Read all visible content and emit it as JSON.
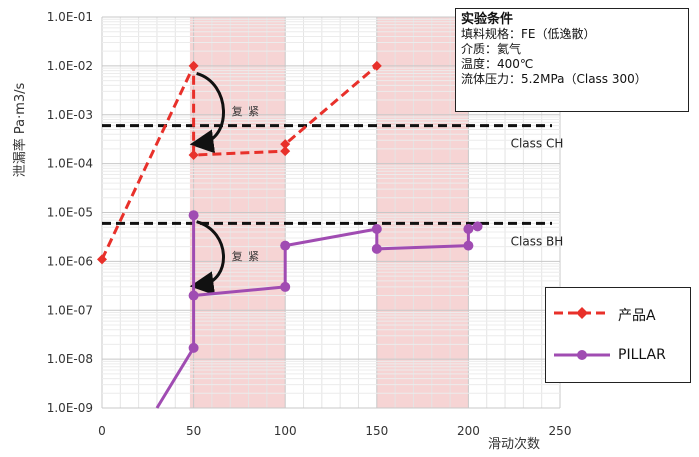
{
  "chart_data": {
    "type": "line",
    "xlabel": "滑动次数",
    "ylabel": "泄漏率  Pa·m3/s",
    "xlim": [
      0,
      250
    ],
    "xticks": [
      0,
      50,
      100,
      150,
      200,
      250
    ],
    "ylim_log10": [
      -9,
      -1
    ],
    "y_scale": "log",
    "yticks": [
      "1.0E-09",
      "1.0E-08",
      "1.0E-07",
      "1.0E-06",
      "1.0E-05",
      "1.0E-04",
      "1.0E-03",
      "1.0E-02",
      "1.0E-01"
    ],
    "grid": true,
    "shaded_x_ranges": [
      [
        48,
        100
      ],
      [
        150,
        200
      ]
    ],
    "reference_lines": [
      {
        "label": "Class CH",
        "y": 0.0006
      },
      {
        "label": "Class BH",
        "y": 6e-06
      }
    ],
    "annotations": [
      {
        "text": "复 紧",
        "near_x": 50,
        "series": "产品A"
      },
      {
        "text": "复 紧",
        "near_x": 50,
        "series": "PILLAR"
      }
    ],
    "series": [
      {
        "name": "产品A",
        "color": "#e8302a",
        "style": "dashed",
        "marker": "diamond",
        "points": [
          [
            0,
            1.1e-06
          ],
          [
            50,
            0.01
          ],
          [
            50,
            0.00015
          ],
          [
            100,
            0.00018
          ],
          [
            100,
            0.00025
          ],
          [
            150,
            0.01
          ]
        ]
      },
      {
        "name": "PILLAR",
        "color": "#a04cb2",
        "style": "solid",
        "marker": "circle",
        "points": [
          [
            30,
            1e-09
          ],
          [
            50,
            1.7e-08
          ],
          [
            50,
            8.8e-06
          ],
          [
            50,
            2e-07
          ],
          [
            100,
            3e-07
          ],
          [
            100,
            2.1e-06
          ],
          [
            150,
            4.6e-06
          ],
          [
            150,
            1.8e-06
          ],
          [
            200,
            2.1e-06
          ],
          [
            200,
            4.6e-06
          ],
          [
            205,
            5.2e-06
          ]
        ]
      }
    ]
  },
  "conditions": {
    "title": "实验条件",
    "lines": [
      "填料规格：FE（低逸散）",
      "介质：氦气",
      "温度：400℃",
      "流体压力：5.2MPa（Class 300）"
    ]
  },
  "legend": [
    {
      "label": "产品A",
      "color": "#e8302a"
    },
    {
      "label": "PILLAR",
      "color": "#a04cb2"
    }
  ]
}
